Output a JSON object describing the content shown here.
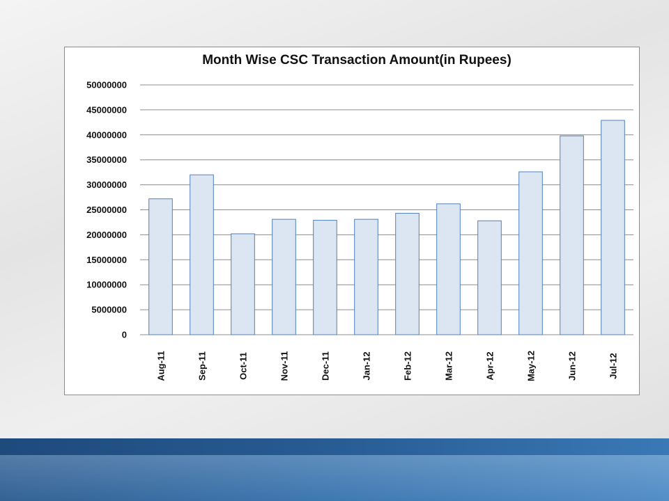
{
  "chart_data": {
    "type": "bar",
    "title": "Month Wise CSC Transaction Amount(in Rupees)",
    "xlabel": "",
    "ylabel": "",
    "categories": [
      "Aug-11",
      "Sep-11",
      "Oct-11",
      "Nov-11",
      "Dec-11",
      "Jan-12",
      "Feb-12",
      "Mar-12",
      "Apr-12",
      "May-12",
      "Jun-12",
      "Jul-12"
    ],
    "series": [
      {
        "values": [
          27200000,
          32000000,
          20200000,
          23100000,
          22900000,
          23100000,
          24300000,
          26200000,
          22800000,
          32600000,
          39800000,
          42900000
        ]
      }
    ],
    "ylim": [
      0,
      50000000
    ],
    "yticks": [
      "0",
      "5000000",
      "10000000",
      "15000000",
      "20000000",
      "25000000",
      "30000000",
      "35000000",
      "40000000",
      "45000000",
      "50000000"
    ],
    "grid": "horizontal",
    "legend": "none",
    "colors": {
      "bar_fill": "#dce6f2",
      "bar_stroke": "#4f81bd",
      "gridline": "#8c8c8c"
    }
  },
  "theme": {
    "band_color": "#3a73ad"
  }
}
